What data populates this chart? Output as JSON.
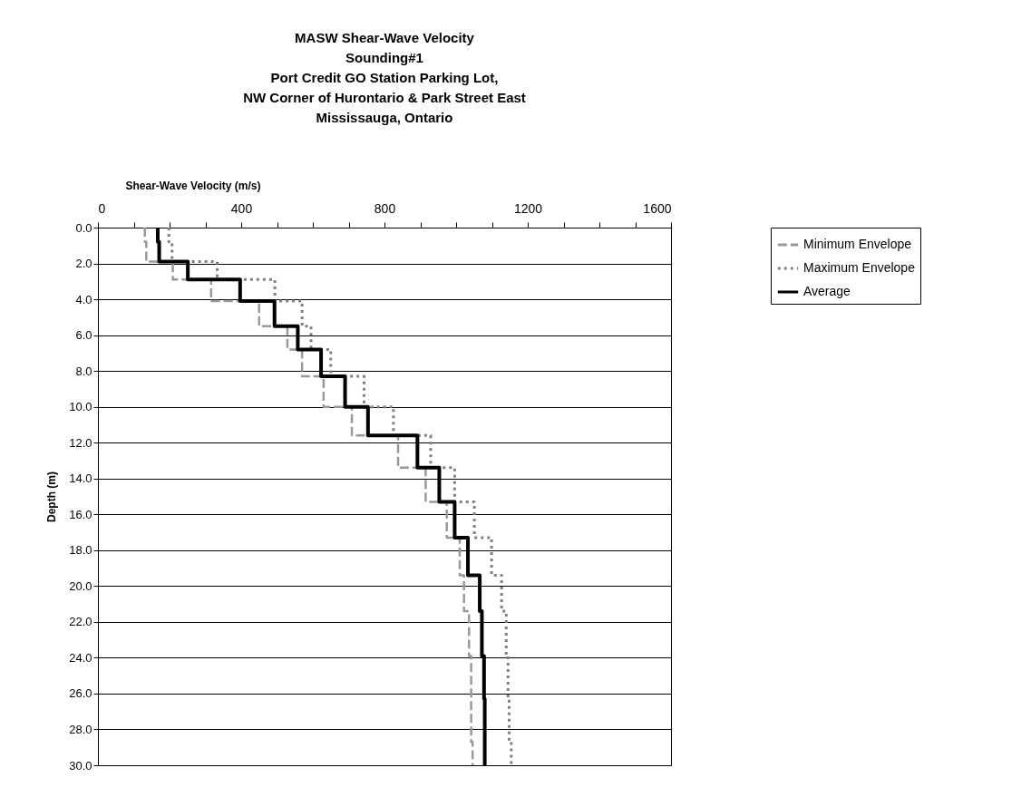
{
  "chart_data": {
    "type": "line",
    "title": [
      "MASW Shear-Wave Velocity",
      "Sounding#1",
      "Port Credit GO Station Parking Lot,",
      "NW Corner of Hurontario & Park Street East",
      "Mississauga, Ontario"
    ],
    "xlabel": "Shear-Wave Velocity (m/s)",
    "ylabel": "Depth (m)",
    "xlim": [
      0,
      1600
    ],
    "xticks": [
      0,
      {
        "value": 100,
        "label": null
      },
      {
        "value": 200,
        "label": null
      },
      {
        "value": 300,
        "label": null
      },
      400,
      {
        "value": 500,
        "label": null
      },
      {
        "value": 600,
        "label": null
      },
      {
        "value": 700,
        "label": null
      },
      800,
      {
        "value": 900,
        "label": null
      },
      {
        "value": 1000,
        "label": null
      },
      {
        "value": 1100,
        "label": null
      },
      1200,
      {
        "value": 1300,
        "label": null
      },
      {
        "value": 1400,
        "label": null
      },
      {
        "value": 1500,
        "label": null
      },
      1600
    ],
    "ylim": [
      30,
      0
    ],
    "yticks": [
      {
        "value": 0,
        "label": "0.0"
      },
      {
        "value": 2,
        "label": "2.0"
      },
      {
        "value": 4,
        "label": "4.0"
      },
      {
        "value": 6,
        "label": "6.0"
      },
      {
        "value": 8,
        "label": "8.0"
      },
      {
        "value": 10,
        "label": "10.0"
      },
      {
        "value": 12,
        "label": "12.0"
      },
      {
        "value": 14,
        "label": "14.0"
      },
      {
        "value": 16,
        "label": "16.0"
      },
      {
        "value": 18,
        "label": "18.0"
      },
      {
        "value": 20,
        "label": "20.0"
      },
      {
        "value": 22,
        "label": "22.0"
      },
      {
        "value": 24,
        "label": "24.0"
      },
      {
        "value": 26,
        "label": "26.0"
      },
      {
        "value": 28,
        "label": "28.0"
      },
      {
        "value": 30,
        "label": "30.0"
      }
    ],
    "grid": "y",
    "legend": "right",
    "marker": "none",
    "series": [
      {
        "name": "Minimum Envelope",
        "color": "#999999",
        "line_style": "dashed",
        "x": [
          131,
          131,
          135,
          135,
          209,
          209,
          316,
          316,
          450,
          450,
          529,
          529,
          570,
          570,
          630,
          630,
          709,
          709,
          838,
          838,
          915,
          915,
          974,
          974,
          1010,
          1010,
          1022,
          1022,
          1036,
          1036,
          1042,
          1042,
          1042,
          1042,
          1046,
          1046
        ],
        "values": [
          0,
          0.8,
          0.8,
          1.9,
          1.9,
          2.9,
          2.9,
          4.1,
          4.1,
          5.5,
          5.5,
          6.8,
          6.8,
          8.3,
          8.3,
          10,
          10,
          11.6,
          11.6,
          13.4,
          13.4,
          15.3,
          15.3,
          17.3,
          17.3,
          19.4,
          19.4,
          21.4,
          21.4,
          23.9,
          23.9,
          26.3,
          26.3,
          28.7,
          28.7,
          30
        ]
      },
      {
        "name": "Maximum Envelope",
        "color": "#808080",
        "line_style": "dotted",
        "x": [
          198,
          198,
          207,
          207,
          333,
          333,
          494,
          494,
          570,
          570,
          595,
          595,
          650,
          650,
          743,
          743,
          825,
          825,
          929,
          929,
          996,
          996,
          1051,
          1051,
          1099,
          1099,
          1127,
          1127,
          1140,
          1140,
          1145,
          1145,
          1148,
          1148,
          1154,
          1154
        ],
        "values": [
          0,
          0.8,
          0.8,
          1.9,
          1.9,
          2.9,
          2.9,
          4.1,
          4.1,
          5.5,
          5.5,
          6.8,
          6.8,
          8.3,
          8.3,
          10,
          10,
          11.6,
          11.6,
          13.4,
          13.4,
          15.3,
          15.3,
          17.3,
          17.3,
          19.4,
          19.4,
          21.4,
          21.4,
          23.9,
          23.9,
          26.3,
          26.3,
          28.7,
          28.7,
          30
        ]
      },
      {
        "name": "Average",
        "color": "#000000",
        "line_style": "solid",
        "x": [
          167,
          167,
          171,
          171,
          251,
          251,
          397,
          397,
          493,
          493,
          558,
          558,
          623,
          623,
          690,
          690,
          754,
          754,
          892,
          892,
          953,
          953,
          996,
          996,
          1033,
          1033,
          1066,
          1066,
          1072,
          1072,
          1078,
          1078,
          1080,
          1080,
          1080,
          1080
        ],
        "values": [
          0,
          0.8,
          0.8,
          1.9,
          1.9,
          2.9,
          2.9,
          4.1,
          4.1,
          5.5,
          5.5,
          6.8,
          6.8,
          8.3,
          8.3,
          10,
          10,
          11.6,
          11.6,
          13.4,
          13.4,
          15.3,
          15.3,
          17.3,
          17.3,
          19.4,
          19.4,
          21.4,
          21.4,
          23.9,
          23.9,
          26.3,
          26.3,
          28.7,
          28.7,
          30
        ]
      }
    ]
  }
}
